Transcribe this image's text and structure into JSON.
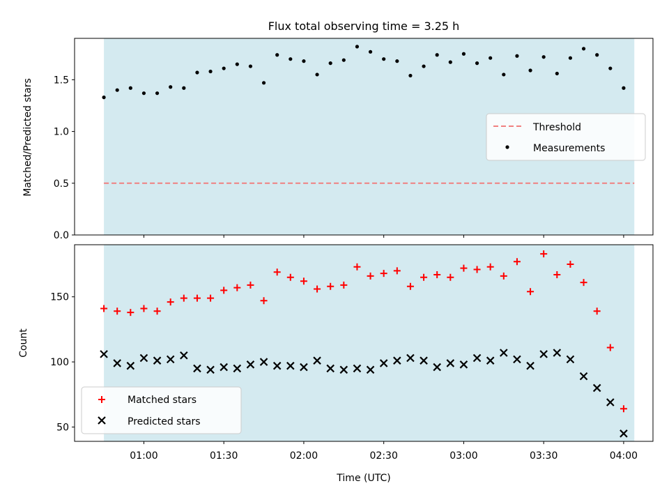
{
  "title": "Flux total observing time = 3.25 h",
  "colors": {
    "shade": "#d4eaf0",
    "threshold": "#f08080",
    "measurement": "#000000",
    "matched": "#ff0000",
    "predicted": "#000000"
  },
  "chart_data": [
    {
      "type": "scatter",
      "ylabel": "Matched/Predicted stars",
      "ylim": [
        0,
        1.9
      ],
      "yticks": [
        0.0,
        0.5,
        1.0,
        1.5
      ],
      "ytick_labels": [
        "0.0",
        "0.5",
        "1.0",
        "1.5"
      ],
      "xlim": [
        "00:34",
        "04:11"
      ],
      "shaded_interval": [
        "00:45",
        "04:04"
      ],
      "legend_position": "center-right",
      "threshold": {
        "name": "Threshold",
        "value": 0.5,
        "style": "dashed"
      },
      "series": [
        {
          "name": "Measurements",
          "x": [
            "00:45",
            "00:50",
            "00:55",
            "01:00",
            "01:05",
            "01:10",
            "01:15",
            "01:20",
            "01:25",
            "01:30",
            "01:35",
            "01:40",
            "01:45",
            "01:50",
            "01:55",
            "02:00",
            "02:05",
            "02:10",
            "02:15",
            "02:20",
            "02:25",
            "02:30",
            "02:35",
            "02:40",
            "02:45",
            "02:50",
            "02:55",
            "03:00",
            "03:05",
            "03:10",
            "03:15",
            "03:20",
            "03:25",
            "03:30",
            "03:35",
            "03:40",
            "03:45",
            "03:50",
            "03:55",
            "04:00"
          ],
          "values": [
            1.33,
            1.4,
            1.42,
            1.37,
            1.37,
            1.43,
            1.42,
            1.57,
            1.58,
            1.61,
            1.65,
            1.63,
            1.47,
            1.74,
            1.7,
            1.68,
            1.55,
            1.66,
            1.69,
            1.82,
            1.77,
            1.7,
            1.68,
            1.54,
            1.63,
            1.74,
            1.67,
            1.75,
            1.66,
            1.71,
            1.55,
            1.73,
            1.59,
            1.72,
            1.56,
            1.71,
            1.8,
            1.74,
            1.61,
            1.42
          ]
        }
      ]
    },
    {
      "type": "scatter",
      "ylabel": "Count",
      "xlabel": "Time (UTC)",
      "ylim": [
        39,
        190
      ],
      "yticks": [
        50,
        100,
        150
      ],
      "xlim": [
        "00:34",
        "04:11"
      ],
      "xticks": [
        "01:00",
        "01:30",
        "02:00",
        "02:30",
        "03:00",
        "03:30",
        "04:00"
      ],
      "shaded_interval": [
        "00:45",
        "04:04"
      ],
      "legend_position": "lower-left",
      "x": [
        "00:45",
        "00:50",
        "00:55",
        "01:00",
        "01:05",
        "01:10",
        "01:15",
        "01:20",
        "01:25",
        "01:30",
        "01:35",
        "01:40",
        "01:45",
        "01:50",
        "01:55",
        "02:00",
        "02:05",
        "02:10",
        "02:15",
        "02:20",
        "02:25",
        "02:30",
        "02:35",
        "02:40",
        "02:45",
        "02:50",
        "02:55",
        "03:00",
        "03:05",
        "03:10",
        "03:15",
        "03:20",
        "03:25",
        "03:30",
        "03:35",
        "03:40",
        "03:45",
        "03:50",
        "03:55",
        "04:00"
      ],
      "series": [
        {
          "name": "Matched stars",
          "marker": "plus",
          "values": [
            141,
            139,
            138,
            141,
            139,
            146,
            149,
            149,
            149,
            155,
            157,
            159,
            147,
            169,
            165,
            162,
            156,
            158,
            159,
            173,
            166,
            168,
            170,
            158,
            165,
            167,
            165,
            172,
            171,
            173,
            166,
            177,
            154,
            183,
            167,
            175,
            161,
            139,
            111,
            64
          ]
        },
        {
          "name": "Predicted stars",
          "marker": "x",
          "values": [
            106,
            99,
            97,
            103,
            101,
            102,
            105,
            95,
            94,
            96,
            95,
            98,
            100,
            97,
            97,
            96,
            101,
            95,
            94,
            95,
            94,
            99,
            101,
            103,
            101,
            96,
            99,
            98,
            103,
            101,
            107,
            102,
            97,
            106,
            107,
            102,
            89,
            80,
            69,
            45
          ]
        }
      ]
    }
  ]
}
